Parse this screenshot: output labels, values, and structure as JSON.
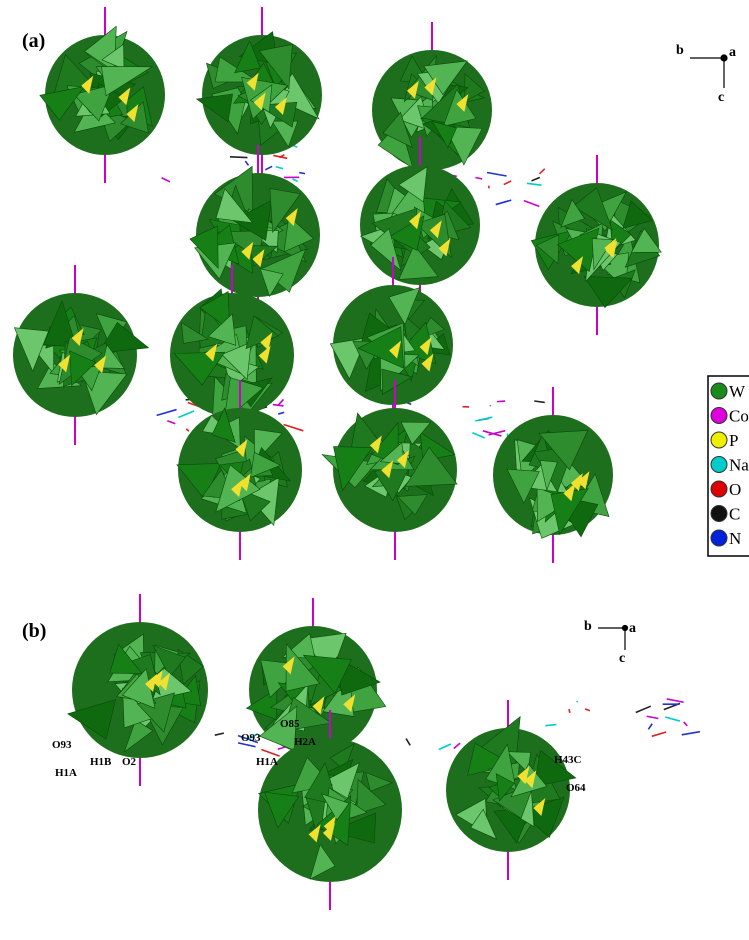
{
  "panel_a": {
    "label": "(a)",
    "axis_labels": [
      "b",
      "a",
      "c"
    ]
  },
  "panel_b": {
    "label": "(b)",
    "axis_labels": [
      "b",
      "a",
      "c"
    ],
    "atom_labels": [
      "O93",
      "H1B",
      "O2",
      "H1A",
      "O93",
      "O85",
      "H2A",
      "H1A",
      "H43C",
      "O64"
    ]
  },
  "legend": [
    "W",
    "Co",
    "P",
    "Na",
    "O",
    "C",
    "N"
  ]
}
